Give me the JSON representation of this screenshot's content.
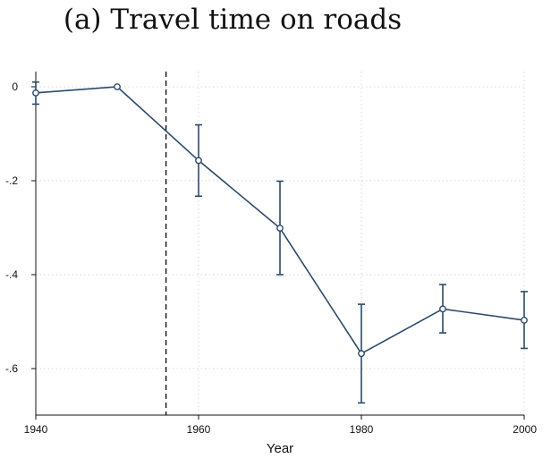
{
  "chart_data": {
    "type": "line",
    "title": "(a) Travel time on roads",
    "xlabel": "Year",
    "ylabel": "",
    "xlim": [
      1940,
      2000
    ],
    "ylim": [
      -0.7,
      0.02
    ],
    "x_ticks": [
      1940,
      1960,
      1980,
      2000
    ],
    "x_tick_labels": [
      "1940",
      "1960",
      "1980",
      "2000"
    ],
    "y_ticks": [
      0,
      -0.2,
      -0.4,
      -0.6
    ],
    "y_tick_labels": [
      "0",
      "-.2",
      "-.4",
      "-.6"
    ],
    "grid": true,
    "reference_line_x": 1956,
    "series": [
      {
        "x": [
          1940,
          1950,
          1960,
          1970,
          1980,
          1990,
          2000
        ],
        "y": [
          -0.013,
          0.0,
          -0.157,
          -0.301,
          -0.568,
          -0.473,
          -0.497
        ],
        "ci_low": [
          -0.037,
          0.0,
          -0.233,
          -0.4,
          -0.673,
          -0.524,
          -0.557
        ],
        "ci_high": [
          0.01,
          0.0,
          -0.081,
          -0.201,
          -0.463,
          -0.421,
          -0.436
        ]
      }
    ],
    "colors": {
      "series": "#2b4a6b",
      "grid": "#d9d9d9",
      "axis": "#111111"
    }
  }
}
